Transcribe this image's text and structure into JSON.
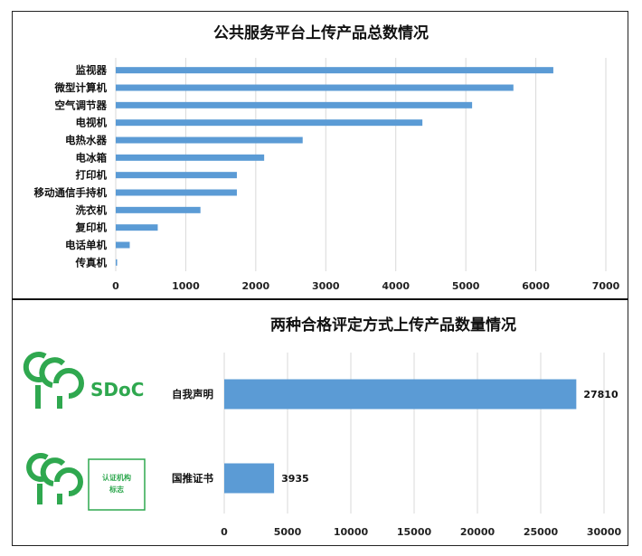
{
  "colors": {
    "bar": "#5b9bd5",
    "grid": "#d9d9d9",
    "logo_green": "#2fa84f"
  },
  "logos": {
    "sdoc_text": "SDoC",
    "badge_line1": "认证机构",
    "badge_line2": "标志"
  },
  "chart_data": [
    {
      "type": "bar",
      "orientation": "horizontal",
      "title": "公共服务平台上传产品总数情况",
      "categories": [
        "监视器",
        "微型计算机",
        "空气调节器",
        "电视机",
        "电热水器",
        "电冰箱",
        "打印机",
        "移动通信手持机",
        "洗衣机",
        "复印机",
        "电话单机",
        "传真机"
      ],
      "values": [
        6250,
        5680,
        5090,
        4380,
        2670,
        2120,
        1730,
        1730,
        1210,
        600,
        200,
        20
      ],
      "xlim": [
        0,
        7000
      ],
      "xticks": [
        "0",
        "1000",
        "2000",
        "3000",
        "4000",
        "5000",
        "6000",
        "7000"
      ],
      "grid": true
    },
    {
      "type": "bar",
      "orientation": "horizontal",
      "title": "两种合格评定方式上传产品数量情况",
      "categories": [
        "自我声明",
        "国推证书"
      ],
      "values": [
        27810,
        3935
      ],
      "data_labels": [
        "27810",
        "3935"
      ],
      "xlim": [
        0,
        30000
      ],
      "xticks": [
        "0",
        "5000",
        "10000",
        "15000",
        "20000",
        "25000",
        "30000"
      ],
      "grid": true
    }
  ]
}
